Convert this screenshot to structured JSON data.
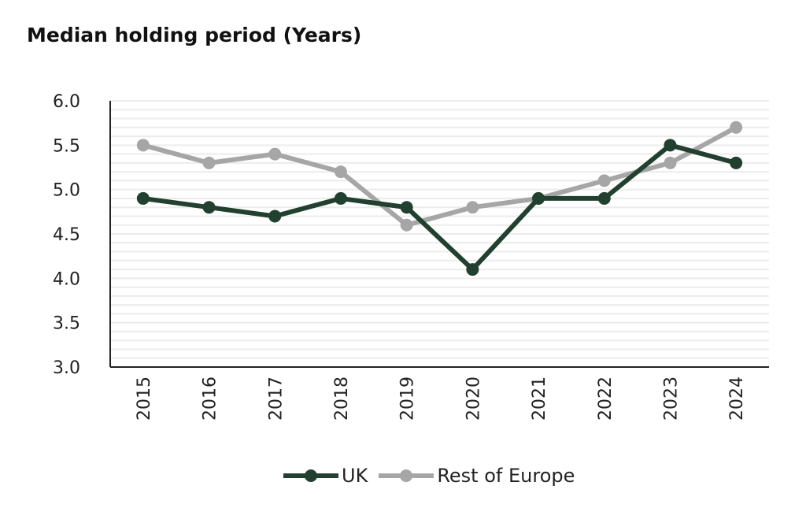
{
  "chart_data": {
    "type": "line",
    "title": "Median holding period (Years)",
    "xlabel": "",
    "ylabel": "",
    "categories": [
      "2015",
      "2016",
      "2017",
      "2018",
      "2019",
      "2020",
      "2021",
      "2022",
      "2023",
      "2024"
    ],
    "ylim": [
      3.0,
      6.0
    ],
    "yticks": [
      "3.0",
      "3.5",
      "4.0",
      "4.5",
      "5.0",
      "5.5",
      "6.0"
    ],
    "grid": true,
    "legend": "bottom",
    "series": [
      {
        "name": "UK",
        "color": "#22402f",
        "values": [
          4.9,
          4.8,
          4.7,
          4.9,
          4.8,
          4.1,
          4.9,
          4.9,
          5.5,
          5.3
        ]
      },
      {
        "name": "Rest of Europe",
        "color": "#a6a6a6",
        "values": [
          5.5,
          5.3,
          5.4,
          5.2,
          4.6,
          4.8,
          4.9,
          5.1,
          5.3,
          5.7
        ]
      }
    ]
  }
}
